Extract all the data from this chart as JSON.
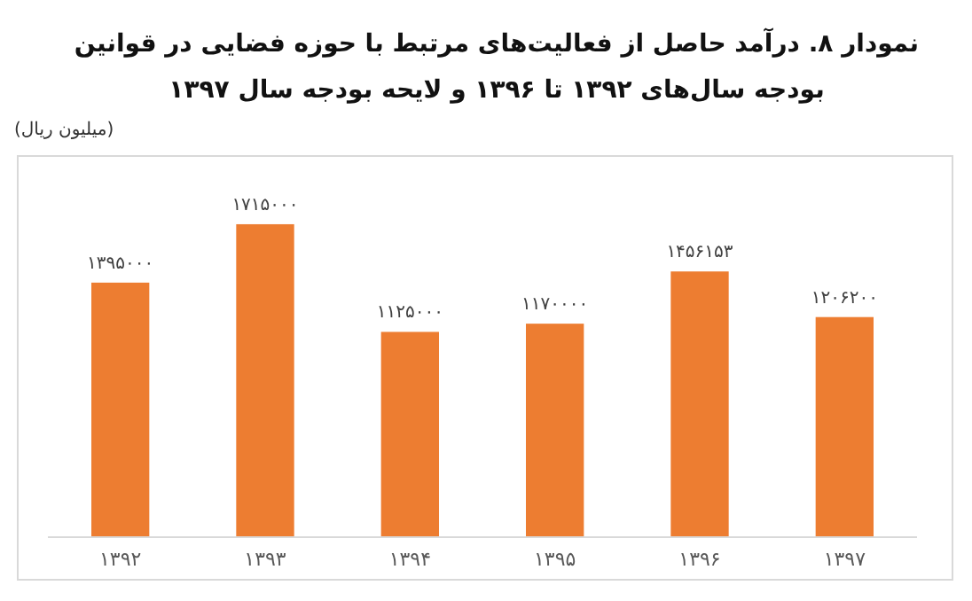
{
  "chart_data": {
    "type": "bar",
    "title": "نمودار ۸. درآمد حاصل از فعالیت‌های مرتبط با حوزه فضایی در قوانین بودجه سال‌های ۱۳۹۲ تا ۱۳۹۶ و لایحه بودجه سال ۱۳۹۷",
    "ylabel": "(میلیون ریال)",
    "categories": [
      "۱۳۹۲",
      "۱۳۹۳",
      "۱۳۹۴",
      "۱۳۹۵",
      "۱۳۹۶",
      "۱۳۹۷"
    ],
    "values": [
      1395000,
      1715000,
      1125000,
      1170000,
      1456153,
      1206200
    ],
    "value_labels": [
      "۱۳۹۵۰۰۰",
      "۱۷۱۵۰۰۰",
      "۱۱۲۵۰۰۰",
      "۱۱۷۰۰۰۰",
      "۱۴۵۶۱۵۳",
      "۱۲۰۶۲۰۰"
    ],
    "color": "#ed7d31"
  }
}
